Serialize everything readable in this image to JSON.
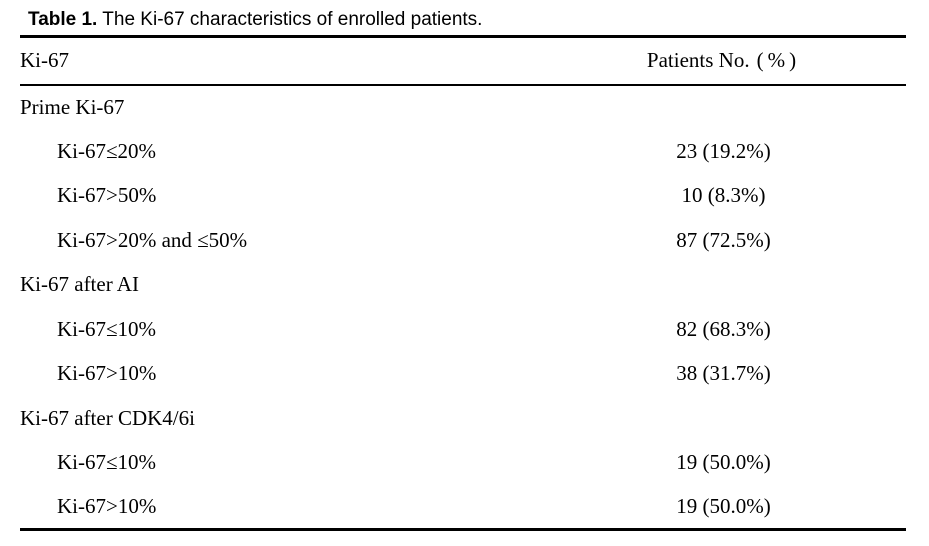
{
  "caption": {
    "label": "Table 1.",
    "text": " The Ki-67 characteristics of enrolled patients."
  },
  "table": {
    "col1_header": "Ki-67",
    "col2_header": "Patients No.",
    "col2_header_unit": "(%)",
    "rows": [
      {
        "label": "Prime Ki-67",
        "value": "",
        "indent": false
      },
      {
        "label": "Ki-67≤20%",
        "value": "23 (19.2%)",
        "indent": true
      },
      {
        "label": "Ki-67>50%",
        "value": "10 (8.3%)",
        "indent": true
      },
      {
        "label": "Ki-67>20% and ≤50%",
        "value": "87 (72.5%)",
        "indent": true
      },
      {
        "label": "Ki-67 after AI",
        "value": "",
        "indent": false
      },
      {
        "label": "Ki-67≤10%",
        "value": "82 (68.3%)",
        "indent": true
      },
      {
        "label": "Ki-67>10%",
        "value": "38 (31.7%)",
        "indent": true
      },
      {
        "label": "Ki-67 after CDK4/6i",
        "value": "",
        "indent": false
      },
      {
        "label": "Ki-67≤10%",
        "value": "19 (50.0%)",
        "indent": true
      },
      {
        "label": "Ki-67>10%",
        "value": "19 (50.0%)",
        "indent": true
      }
    ]
  }
}
